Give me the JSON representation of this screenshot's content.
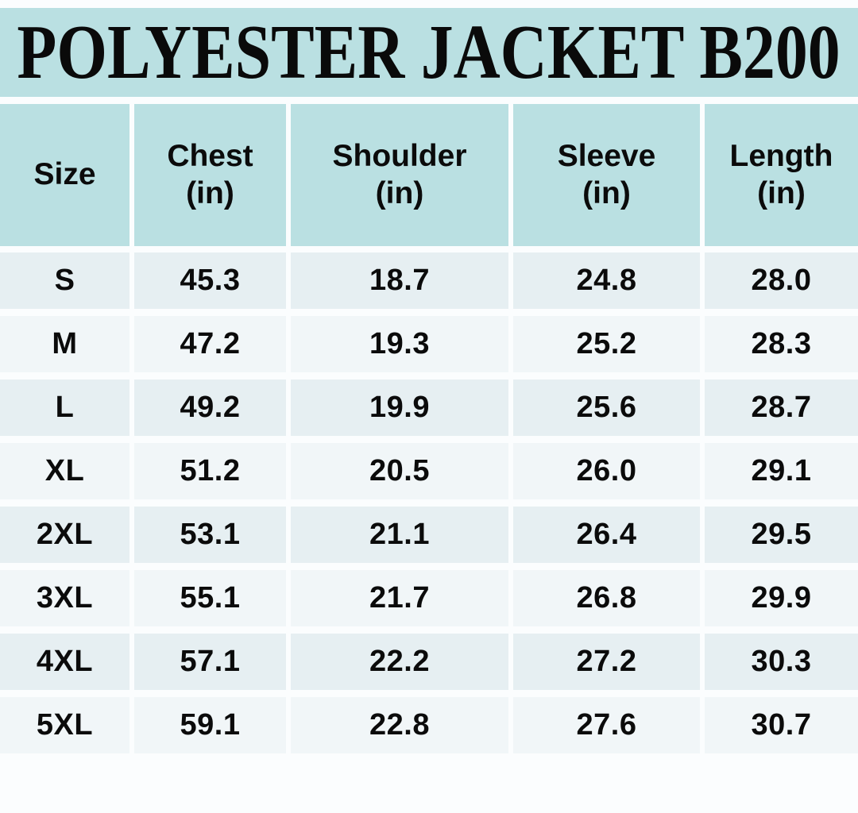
{
  "title": "POLYESTER JACKET B200",
  "table": {
    "columns": [
      {
        "label": "Size"
      },
      {
        "label": "Chest",
        "unit": "(in)"
      },
      {
        "label": "Shoulder",
        "unit": "(in)"
      },
      {
        "label": "Sleeve",
        "unit": "(in)"
      },
      {
        "label": "Length",
        "unit": "(in)"
      }
    ],
    "rows": [
      {
        "size": "S",
        "chest": "45.3",
        "shoulder": "18.7",
        "sleeve": "24.8",
        "length": "28.0"
      },
      {
        "size": "M",
        "chest": "47.2",
        "shoulder": "19.3",
        "sleeve": "25.2",
        "length": "28.3"
      },
      {
        "size": "L",
        "chest": "49.2",
        "shoulder": "19.9",
        "sleeve": "25.6",
        "length": "28.7"
      },
      {
        "size": "XL",
        "chest": "51.2",
        "shoulder": "20.5",
        "sleeve": "26.0",
        "length": "29.1"
      },
      {
        "size": "2XL",
        "chest": "53.1",
        "shoulder": "21.1",
        "sleeve": "26.4",
        "length": "29.5"
      },
      {
        "size": "3XL",
        "chest": "55.1",
        "shoulder": "21.7",
        "sleeve": "26.8",
        "length": "29.9"
      },
      {
        "size": "4XL",
        "chest": "57.1",
        "shoulder": "22.2",
        "sleeve": "27.2",
        "length": "30.3"
      },
      {
        "size": "5XL",
        "chest": "59.1",
        "shoulder": "22.8",
        "sleeve": "27.6",
        "length": "30.7"
      }
    ]
  },
  "chart_data": {
    "type": "table",
    "title": "POLYESTER JACKET B200",
    "columns": [
      "Size",
      "Chest (in)",
      "Shoulder (in)",
      "Sleeve (in)",
      "Length (in)"
    ],
    "rows": [
      [
        "S",
        45.3,
        18.7,
        24.8,
        28.0
      ],
      [
        "M",
        47.2,
        19.3,
        25.2,
        28.3
      ],
      [
        "L",
        49.2,
        19.9,
        25.6,
        28.7
      ],
      [
        "XL",
        51.2,
        20.5,
        26.0,
        29.1
      ],
      [
        "2XL",
        53.1,
        21.1,
        26.4,
        29.5
      ],
      [
        "3XL",
        55.1,
        21.7,
        26.8,
        29.9
      ],
      [
        "4XL",
        57.1,
        22.2,
        27.2,
        30.3
      ],
      [
        "5XL",
        59.1,
        22.8,
        27.6,
        30.7
      ]
    ],
    "units": "inches",
    "layout_hints": {
      "header_background": "#bae0e2",
      "row_alternation": [
        "#e6eff2",
        "#f1f6f8"
      ],
      "gridlines": "white gaps between cells"
    }
  },
  "colors": {
    "band_teal": "#bae0e2",
    "row_dark": "#e6eff2",
    "row_light": "#f1f6f8",
    "page_background": "#fbfdfe",
    "text": "#0b0b0b"
  }
}
